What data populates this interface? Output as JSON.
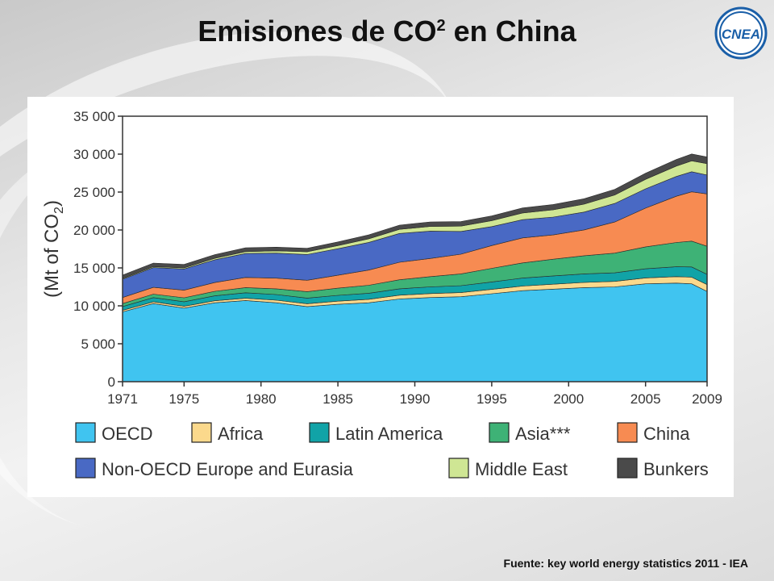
{
  "slide": {
    "title_main": "Emisiones de CO",
    "title_sup": "2",
    "title_end": " en China",
    "logo_text": "CNEA",
    "source": "Fuente: key world energy statistics 2011 - IEA"
  },
  "chart_data": {
    "type": "area",
    "stacked": true,
    "ylabel_main": "(Mt of CO",
    "ylabel_sub": "2",
    "ylabel_end": ")",
    "ylim": [
      0,
      35000
    ],
    "yticks": [
      0,
      5000,
      10000,
      15000,
      20000,
      25000,
      30000,
      35000
    ],
    "ytick_labels": [
      "0",
      "5 000",
      "10 000",
      "15 000",
      "20 000",
      "25 000",
      "30 000",
      "35 000"
    ],
    "xlim": [
      1971,
      2009
    ],
    "xticks": [
      1971,
      1975,
      1980,
      1985,
      1990,
      1995,
      2000,
      2005,
      2009
    ],
    "x": [
      1971,
      1973,
      1975,
      1977,
      1979,
      1981,
      1983,
      1985,
      1987,
      1989,
      1991,
      1993,
      1995,
      1997,
      1999,
      2001,
      2003,
      2005,
      2007,
      2008,
      2009
    ],
    "series": [
      {
        "name": "OECD",
        "color": "#40c4f0",
        "values": [
          9200,
          10300,
          9700,
          10400,
          10700,
          10400,
          9900,
          10200,
          10400,
          10900,
          11100,
          11200,
          11600,
          12000,
          12200,
          12400,
          12500,
          12900,
          13000,
          12900,
          11900
        ]
      },
      {
        "name": "Africa",
        "color": "#fbd98c",
        "values": [
          200,
          220,
          240,
          270,
          300,
          340,
          380,
          420,
          460,
          500,
          520,
          540,
          570,
          610,
          650,
          690,
          720,
          780,
          850,
          880,
          900
        ]
      },
      {
        "name": "Latin America",
        "color": "#11a3a7",
        "values": [
          500,
          560,
          600,
          650,
          720,
          750,
          740,
          760,
          800,
          840,
          880,
          920,
          980,
          1050,
          1100,
          1120,
          1130,
          1200,
          1300,
          1350,
          1350
        ]
      },
      {
        "name": "Asia***",
        "color": "#3eb276",
        "values": [
          400,
          460,
          520,
          600,
          680,
          760,
          850,
          950,
          1050,
          1200,
          1350,
          1550,
          1800,
          2000,
          2200,
          2400,
          2600,
          2900,
          3200,
          3400,
          3700
        ]
      },
      {
        "name": "China",
        "color": "#f78b52",
        "values": [
          800,
          900,
          1000,
          1150,
          1350,
          1400,
          1500,
          1700,
          2000,
          2300,
          2400,
          2600,
          3000,
          3300,
          3200,
          3400,
          4100,
          5100,
          6100,
          6500,
          6900
        ]
      },
      {
        "name": "Non-OECD Europe and Eurasia",
        "color": "#4969c4",
        "values": [
          2400,
          2600,
          2800,
          3000,
          3150,
          3300,
          3400,
          3500,
          3650,
          3800,
          3600,
          3000,
          2500,
          2400,
          2350,
          2350,
          2450,
          2550,
          2600,
          2650,
          2500
        ]
      },
      {
        "name": "Middle East",
        "color": "#cfe694",
        "values": [
          100,
          130,
          150,
          200,
          250,
          300,
          360,
          420,
          480,
          540,
          620,
          700,
          780,
          880,
          960,
          1040,
          1120,
          1250,
          1380,
          1440,
          1500
        ]
      },
      {
        "name": "Bunkers",
        "color": "#4a4a4a",
        "values": [
          450,
          470,
          450,
          480,
          500,
          480,
          460,
          480,
          520,
          560,
          590,
          600,
          620,
          660,
          700,
          720,
          740,
          800,
          870,
          900,
          880
        ]
      }
    ]
  }
}
